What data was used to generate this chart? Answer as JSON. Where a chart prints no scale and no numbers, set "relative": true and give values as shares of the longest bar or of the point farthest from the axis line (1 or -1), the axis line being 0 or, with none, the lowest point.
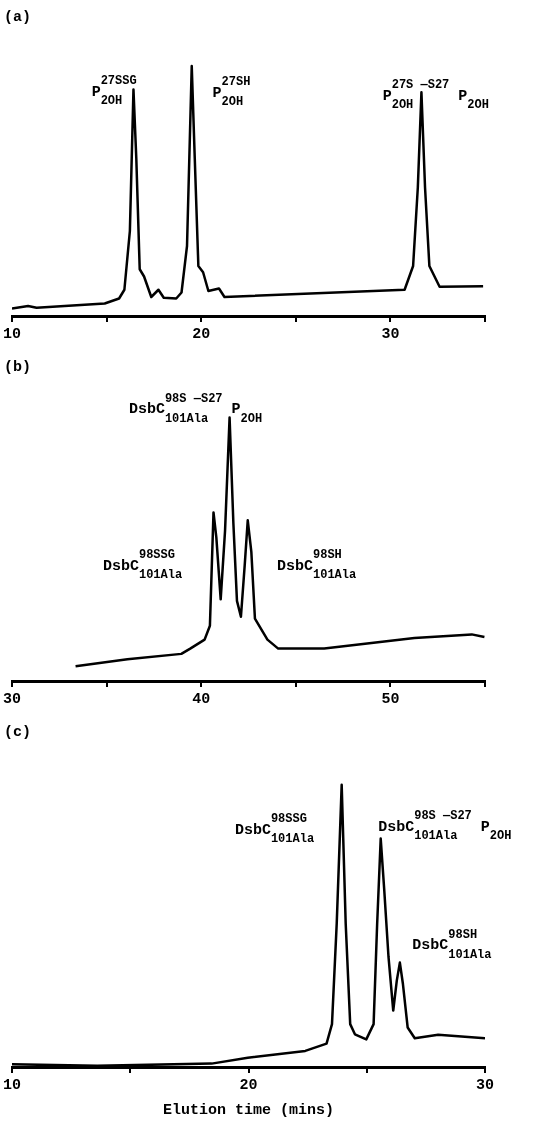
{
  "chart_data": [
    {
      "type": "line",
      "title": "(a)",
      "relative": true,
      "marker": "none",
      "line_style": "solid",
      "color": "#000000",
      "xlim": [
        10,
        35
      ],
      "xticks": [
        10,
        {
          "value": 15,
          "label": null
        },
        20,
        {
          "value": 25,
          "label": null
        },
        30,
        {
          "value": 35,
          "label": null
        }
      ],
      "x": [
        10,
        10.85,
        11.3,
        14.9,
        15.66,
        15.94,
        16.23,
        16.42,
        16.57,
        16.75,
        16.98,
        17.36,
        17.74,
        18.02,
        18.68,
        18.96,
        19.25,
        19.5,
        19.66,
        19.85,
        20.1,
        20.38,
        20.94,
        21.23,
        30.75,
        31.2,
        31.45,
        31.64,
        31.83,
        32.06,
        32.6,
        34.9
      ],
      "values": [
        0.03,
        0.04,
        0.033,
        0.05,
        0.07,
        0.105,
        0.34,
        0.906,
        0.63,
        0.187,
        0.158,
        0.076,
        0.105,
        0.073,
        0.07,
        0.094,
        0.28,
        1,
        0.63,
        0.2,
        0.175,
        0.1,
        0.11,
        0.076,
        0.105,
        0.2,
        0.515,
        0.895,
        0.515,
        0.2,
        0.117,
        0.119
      ],
      "annotations": [
        "P$^{27SSG}$$_{2OH}$",
        "P$^{27SH}$$_{2OH}$",
        "P$^{27S —S27}$$_{2OH}$ P$_{2OH}$"
      ]
    },
    {
      "type": "line",
      "title": "(b)",
      "relative": true,
      "marker": "none",
      "line_style": "solid",
      "color": "#000000",
      "xlim": [
        30,
        55
      ],
      "xticks": [
        30,
        {
          "value": 35,
          "label": null
        },
        40,
        {
          "value": 45,
          "label": null
        },
        50,
        {
          "value": 55,
          "label": null
        }
      ],
      "x": [
        33.36,
        36.1,
        38.95,
        39.42,
        40.18,
        40.46,
        40.65,
        40.8,
        41.03,
        41.26,
        41.5,
        41.7,
        41.89,
        42.1,
        42.3,
        42.46,
        42.65,
        42.84,
        43.5,
        44.07,
        46.5,
        51.27,
        54.3,
        54.97
      ],
      "values": [
        0.056,
        0.083,
        0.103,
        0.123,
        0.157,
        0.21,
        0.64,
        0.545,
        0.31,
        0.57,
        1,
        0.6,
        0.304,
        0.244,
        0.44,
        0.61,
        0.49,
        0.237,
        0.157,
        0.123,
        0.123,
        0.163,
        0.177,
        0.167
      ],
      "annotations": [
        "DsbC$^{98S —S27}$$_{101Ala}$ P$_{2OH}$",
        "DsbC$^{98SSG}$$_{101Ala}$",
        "DsbC$^{98SH}$$_{101Ala}$"
      ]
    },
    {
      "type": "line",
      "title": "(c)",
      "xlabel": "Elution time (mins)",
      "relative": true,
      "marker": "none",
      "line_style": "solid",
      "color": "#000000",
      "xlim": [
        10,
        30
      ],
      "xticks": [
        10,
        {
          "value": 15,
          "label": null
        },
        20,
        {
          "value": 25,
          "label": null
        },
        30
      ],
      "x": [
        10,
        13.6,
        18.44,
        19.97,
        22.4,
        23.3,
        23.53,
        23.73,
        23.94,
        24.11,
        24.3,
        24.5,
        24.98,
        25.29,
        25.44,
        25.59,
        25.74,
        25.92,
        26.12,
        26.27,
        26.4,
        26.53,
        26.73,
        27.03,
        28.02,
        30
      ],
      "values": [
        0.01,
        0.004,
        0.012,
        0.033,
        0.057,
        0.083,
        0.152,
        0.508,
        1,
        0.508,
        0.152,
        0.116,
        0.098,
        0.152,
        0.508,
        0.81,
        0.627,
        0.39,
        0.2,
        0.306,
        0.37,
        0.294,
        0.14,
        0.102,
        0.114,
        0.102
      ],
      "annotations": [
        "DsbC$^{98SSG}$$_{101Ala}$",
        "DsbC$^{98S —S27}$$_{101Ala}$ P$_{2OH}$",
        "DsbC$^{98SH}$$_{101Ala}$"
      ]
    }
  ]
}
